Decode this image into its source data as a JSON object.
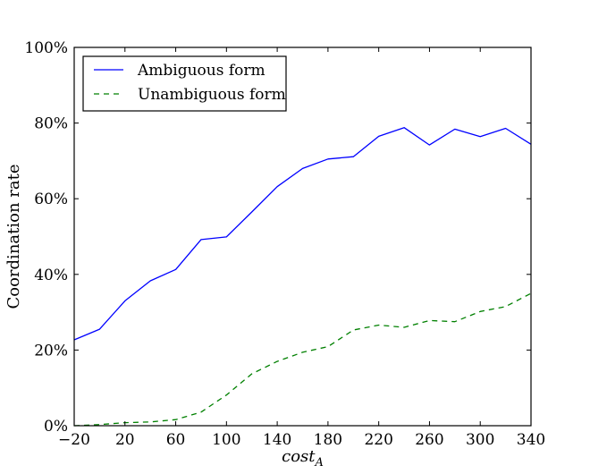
{
  "chart_data": {
    "type": "line",
    "title": "",
    "xlabel": "cost",
    "xlabel_subscript": "A",
    "ylabel": "Coordination rate",
    "xlim": [
      -20,
      340
    ],
    "ylim": [
      0,
      1
    ],
    "x_ticks": [
      -20,
      20,
      60,
      100,
      140,
      180,
      220,
      260,
      300,
      340
    ],
    "x_tick_labels": [
      "−20",
      "20",
      "60",
      "100",
      "140",
      "180",
      "220",
      "260",
      "300",
      "340"
    ],
    "y_ticks": [
      0,
      0.2,
      0.4,
      0.6,
      0.8,
      1.0
    ],
    "y_tick_labels": [
      "0%",
      "20%",
      "40%",
      "60%",
      "80%",
      "100%"
    ],
    "grid": false,
    "legend_position": "top-left",
    "x": [
      -20,
      0,
      20,
      40,
      60,
      80,
      100,
      120,
      140,
      160,
      180,
      200,
      220,
      240,
      260,
      280,
      300,
      320,
      340
    ],
    "series": [
      {
        "name": "Ambiguous form",
        "color": "#0000ff",
        "style": "solid",
        "values": [
          0.227,
          0.255,
          0.33,
          0.383,
          0.413,
          0.492,
          0.499,
          0.565,
          0.632,
          0.68,
          0.705,
          0.711,
          0.765,
          0.788,
          0.742,
          0.784,
          0.764,
          0.786,
          0.744
        ]
      },
      {
        "name": "Unambiguous form",
        "color": "#008000",
        "style": "dashed",
        "values": [
          0.0,
          0.003,
          0.008,
          0.01,
          0.016,
          0.036,
          0.081,
          0.137,
          0.17,
          0.194,
          0.209,
          0.253,
          0.266,
          0.26,
          0.278,
          0.275,
          0.302,
          0.315,
          0.35
        ]
      }
    ]
  }
}
